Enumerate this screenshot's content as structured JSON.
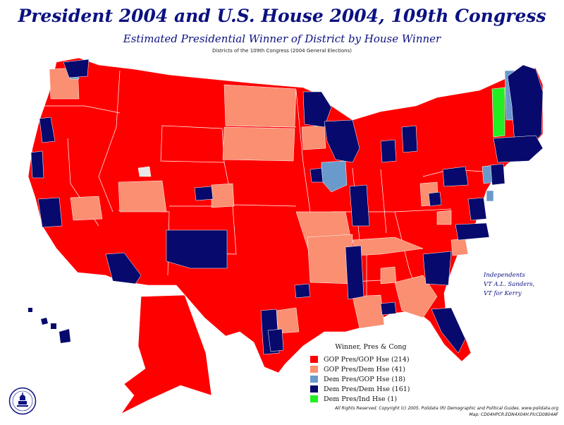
{
  "title": "President 2004 and U.S. House 2004, 109th Congress",
  "subtitle": "Estimated Presidential Winner of District by House Winner",
  "caption": "Districts of the 109th Congress (2004 General Elections)",
  "note": {
    "line1": "Independents",
    "line2": "VT A.L. Sanders,",
    "line3": "VT for Kerry"
  },
  "legend": {
    "title": "Winner, Pres & Cong",
    "items": [
      {
        "label": "GOP Pres/GOP Hse (214)",
        "color": "#ff0000"
      },
      {
        "label": "GOP Pres/Dem Hse (41)",
        "color": "#fa8f72"
      },
      {
        "label": "Dem Pres/GOP Hse (18)",
        "color": "#6a9acb"
      },
      {
        "label": "Dem Pres/Dem Hse (161)",
        "color": "#070a6c"
      },
      {
        "label": "Dem Pres/Ind Hse (1)",
        "color": "#22ee22"
      }
    ]
  },
  "copyright": {
    "line1": "All Rights Reserved. Copyright (c) 2005. Polidata (R) Demographic and Political Guides. www.polidata.org",
    "line2": "Map: CD04HPCR.EDN4X04H.PlcCD0804AF"
  },
  "colors": {
    "gop_gop": "#ff0000",
    "gop_dem": "#fa8f72",
    "dem_gop": "#6a9acb",
    "dem_dem": "#070a6c",
    "dem_ind": "#22ee22",
    "title": "#0b1180"
  }
}
